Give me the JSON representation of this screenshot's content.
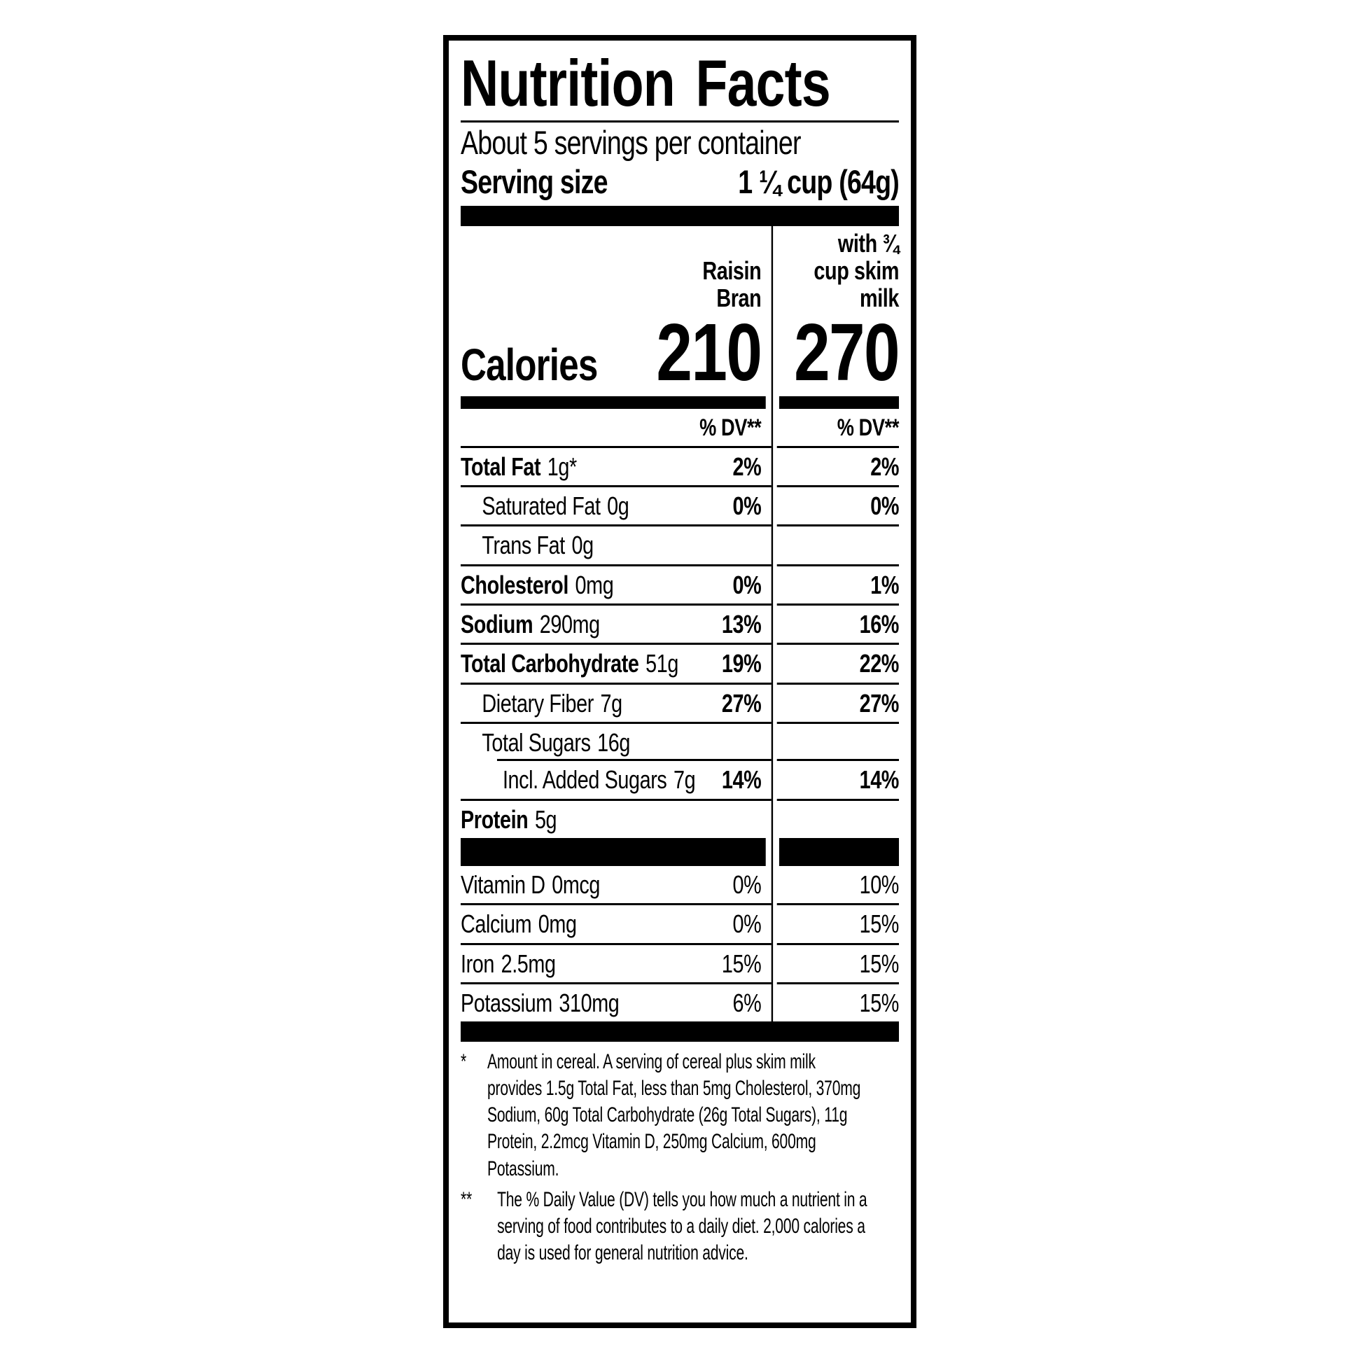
{
  "page": {
    "background": "#ffffff"
  },
  "label": {
    "border_color": "#000000",
    "text_color": "#000000",
    "title": "Nutrition Facts",
    "servings_per_container": "About 5 servings per container",
    "serving_size": {
      "label": "Serving size",
      "value": "1 ¼ cup (64g)"
    },
    "columns": {
      "cereal": {
        "line1": "Raisin",
        "line2": "Bran"
      },
      "with_milk": {
        "line1": "with ¾",
        "line2": "cup skim",
        "line3": "milk"
      }
    },
    "calories": {
      "label": "Calories",
      "cereal": "210",
      "with_milk": "270"
    },
    "dv_header": {
      "cereal": "% DV**",
      "with_milk": "% DV**"
    },
    "rows": [
      {
        "name": "Total Fat",
        "amount": "1g*",
        "dv_cereal": "2%",
        "dv_milk": "2%"
      },
      {
        "name": "Saturated Fat",
        "amount": "0g",
        "dv_cereal": "0%",
        "dv_milk": "0%"
      },
      {
        "name": "Trans Fat",
        "amount": "0g",
        "dv_cereal": "",
        "dv_milk": ""
      },
      {
        "name": "Cholesterol",
        "amount": "0mg",
        "dv_cereal": "0%",
        "dv_milk": "1%"
      },
      {
        "name": "Sodium",
        "amount": "290mg",
        "dv_cereal": "13%",
        "dv_milk": "16%"
      },
      {
        "name": "Total Carbohydrate",
        "amount": "51g",
        "dv_cereal": "19%",
        "dv_milk": "22%"
      },
      {
        "name": "Dietary Fiber",
        "amount": "7g",
        "dv_cereal": "27%",
        "dv_milk": "27%"
      },
      {
        "name": "Total Sugars",
        "amount": "16g",
        "dv_cereal": "",
        "dv_milk": ""
      },
      {
        "name": "Incl. Added Sugars",
        "amount": "7g",
        "dv_cereal": "14%",
        "dv_milk": "14%"
      },
      {
        "name": "Protein",
        "amount": "5g",
        "dv_cereal": "",
        "dv_milk": ""
      }
    ],
    "vitamins": [
      {
        "name": "Vitamin D",
        "amount": "0mcg",
        "dv_cereal": "0%",
        "dv_milk": "10%"
      },
      {
        "name": "Calcium",
        "amount": "0mg",
        "dv_cereal": "0%",
        "dv_milk": "15%"
      },
      {
        "name": "Iron",
        "amount": "2.5mg",
        "dv_cereal": "15%",
        "dv_milk": "15%"
      },
      {
        "name": "Potassium",
        "amount": "310mg",
        "dv_cereal": "6%",
        "dv_milk": "15%"
      }
    ],
    "footnotes": {
      "cereal_note": {
        "marker": "*",
        "text": "Amount in cereal. A serving of cereal plus skim milk provides 1.5g Total Fat, less than 5mg Cholesterol, 370mg Sodium, 60g Total Carbohydrate (26g Total Sugars), 11g Protein, 2.2mcg Vitamin D, 250mg Calcium, 600mg Potassium."
      },
      "dv_note": {
        "marker": "**",
        "text": "The % Daily Value (DV) tells you how much a nutrient in a serving of food contributes to a daily diet. 2,000 calories a day is used for general nutrition advice."
      }
    }
  }
}
